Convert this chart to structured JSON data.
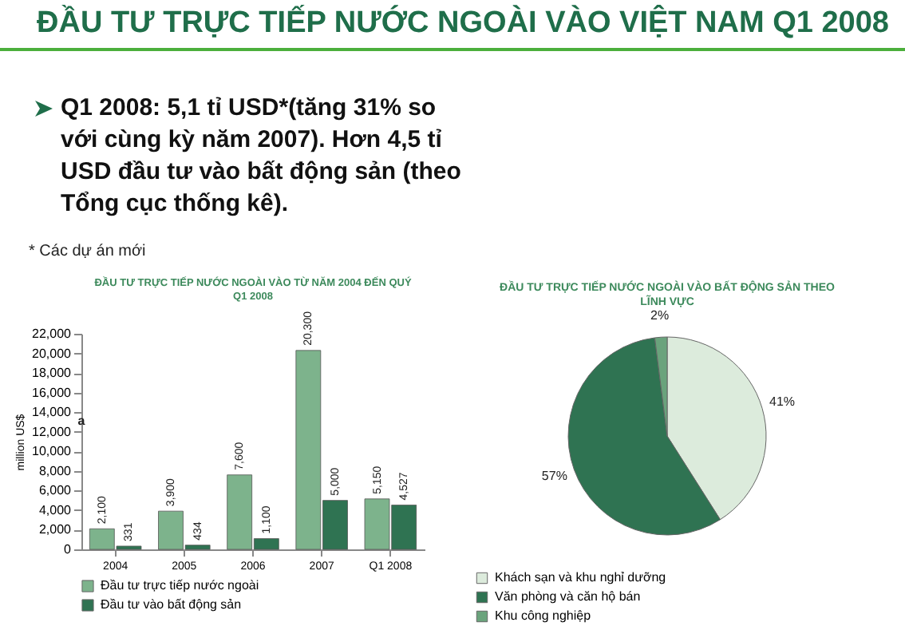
{
  "chart_data": [
    {
      "type": "other",
      "title": "ĐẦU TƯ TRỰC TIẾP NƯỚC NGOÀI VÀO VIỆT NAM Q1 2008",
      "annotations": [
        " Q1 2008: 5,1 tỉ USD*(tăng 31% so với cùng kỳ năm 2007). Hơn 4,5 tỉ USD đầu tư vào bất động sản (theo Tổng cục thống kê).",
        "* Các dự án mới"
      ]
    },
    {
      "type": "bar",
      "title": "ĐẦU TƯ TRỰC TIẾP NƯỚC NGOÀI VÀO TỪ NĂM 2004 ĐẾN QUÝ  Q1 2008",
      "ylabel": "million US$",
      "categories": [
        "2004",
        "2005",
        "2006",
        "2007",
        "Q1 2008"
      ],
      "series": [
        {
          "name": "Đầu tư trực tiếp nước ngoài",
          "color": "#7db38c",
          "values": [
            2100,
            3900,
            7600,
            20300,
            5150
          ],
          "value_labels": [
            "2,100",
            "3,900",
            "7,600",
            "20,300",
            "5,150"
          ]
        },
        {
          "name": "Đầu tư vào bất động sản",
          "color": "#2f7352",
          "values": [
            331,
            434,
            1100,
            5000,
            4527
          ],
          "value_labels": [
            "331",
            "434",
            "1,100",
            "5,000",
            "4,527"
          ]
        }
      ],
      "ylim": [
        0,
        22000
      ],
      "yticks": [
        0,
        {
          "value": 2000,
          "label": "2,000"
        },
        {
          "value": 4000,
          "label": "4,000"
        },
        {
          "value": 6000,
          "label": "6,000"
        },
        {
          "value": 8000,
          "label": "8,000"
        },
        {
          "value": 10000,
          "label": "10,000"
        },
        {
          "value": 12000,
          "label": "12,000"
        },
        {
          "value": 14000,
          "label": "14,000"
        },
        {
          "value": 16000,
          "label": "16,000"
        },
        {
          "value": 18000,
          "label": "18,000"
        },
        {
          "value": 20000,
          "label": "20,000"
        },
        {
          "value": 22000,
          "label": "22,000"
        }
      ],
      "legend": "bottom",
      "annotations": [
        "a"
      ]
    },
    {
      "type": "pie",
      "title": "ĐẦU TƯ TRỰC TIẾP NƯỚC NGOÀI VÀO BẤT ĐỘNG SẢN THEO LĨNH VỰC",
      "categories": [
        "Khách sạn và khu nghỉ dưỡng",
        "Văn phòng và căn hộ bán",
        "Khu công nghiệp"
      ],
      "values": [
        41,
        57,
        2
      ],
      "colors": [
        "#dcebdc",
        "#2f7352",
        "#6aa37c"
      ],
      "value_labels": [
        "41%",
        "57%",
        "2%"
      ],
      "legend": "bottom"
    }
  ]
}
